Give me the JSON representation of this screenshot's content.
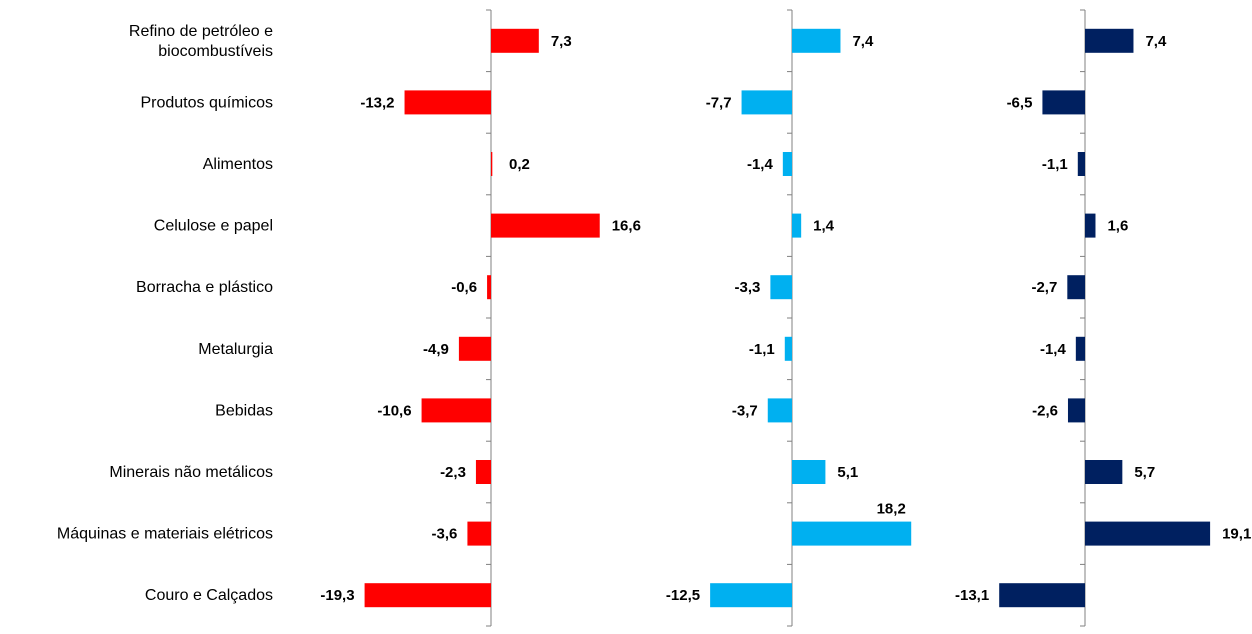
{
  "chart_data": {
    "type": "bar",
    "orientation": "horizontal",
    "categories": [
      [
        "Refino de petróleo e",
        "biocombustíveis"
      ],
      [
        "Produtos químicos"
      ],
      [
        "Alimentos"
      ],
      [
        "Celulose e papel"
      ],
      [
        "Borracha e plástico"
      ],
      [
        "Metalurgia"
      ],
      [
        "Bebidas"
      ],
      [
        "Minerais não metálicos"
      ],
      [
        "Máquinas e materiais elétricos"
      ],
      [
        "Couro e Calçados"
      ]
    ],
    "series": [
      {
        "color": "#ff0000",
        "values": [
          7.3,
          -13.2,
          0.2,
          16.6,
          -0.6,
          -4.9,
          -10.6,
          -2.3,
          -3.6,
          -19.3
        ],
        "labels": [
          "7,3",
          "-13,2",
          "0,2",
          "16,6",
          "-0,6",
          "-4,9",
          "-10,6",
          "-2,3",
          "-3,6",
          "-19,3"
        ]
      },
      {
        "color": "#00b0f0",
        "values": [
          7.4,
          -7.7,
          -1.4,
          1.4,
          -3.3,
          -1.1,
          -3.7,
          5.1,
          18.2,
          -12.5
        ],
        "labels": [
          "7,4",
          "-7,7",
          "-1,4",
          "1,4",
          "-3,3",
          "-1,1",
          "-3,7",
          "5,1",
          "18,2",
          "-12,5"
        ]
      },
      {
        "color": "#002060",
        "values": [
          7.4,
          -6.5,
          -1.1,
          1.6,
          -2.7,
          -1.4,
          -2.6,
          5.7,
          19.1,
          -13.1
        ],
        "labels": [
          "7,4",
          "-6,5",
          "-1,1",
          "1,6",
          "-2,7",
          "-1,4",
          "-2,6",
          "5,7",
          "19,1",
          "-13,1"
        ]
      }
    ],
    "title": "",
    "xlabel": "",
    "ylabel": "",
    "grid": false,
    "legend": "none"
  }
}
